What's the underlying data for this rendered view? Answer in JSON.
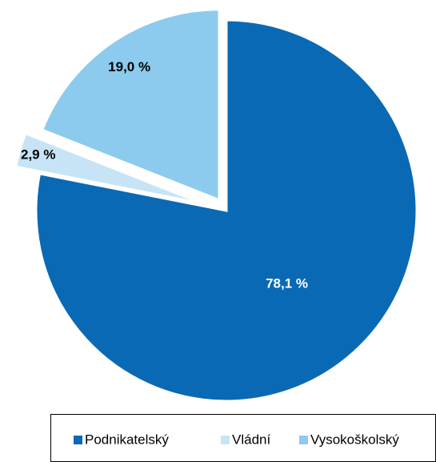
{
  "chart_data": {
    "type": "pie",
    "categories": [
      "Podnikatelský",
      "Vládní",
      "Vysokoškolský"
    ],
    "values": [
      78.1,
      2.9,
      19.0
    ],
    "value_labels": [
      "78,1 %",
      "2,9 %",
      "19,0 %"
    ],
    "colors": [
      "#0a69b4",
      "#c6e4f6",
      "#8ccaee"
    ],
    "legend": "bottom"
  }
}
